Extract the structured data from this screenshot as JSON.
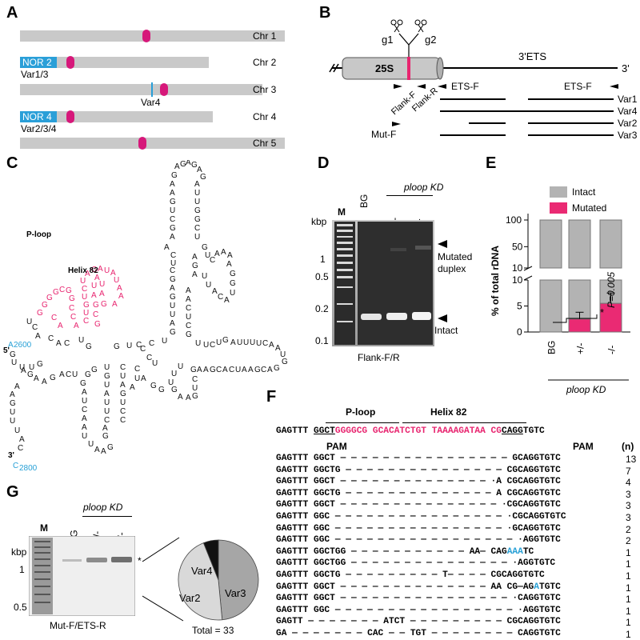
{
  "panels": {
    "a": "A",
    "b": "B",
    "c": "C",
    "d": "D",
    "e": "E",
    "f": "F",
    "g": "G"
  },
  "panelA": {
    "chromosomes": [
      {
        "label": "Chr 1",
        "nor": "",
        "note": ""
      },
      {
        "label": "Chr 2",
        "nor": "NOR 2",
        "note": "Var1/3"
      },
      {
        "label": "Chr 3",
        "nor": "",
        "note": "Var4"
      },
      {
        "label": "Chr 4",
        "nor": "NOR 4",
        "note": "Var2/3/4"
      },
      {
        "label": "Chr 5",
        "nor": "",
        "note": ""
      }
    ],
    "colors": {
      "chromosome": "#c9c9c9",
      "centromere": "#d6187a",
      "nor": "#2a9fd8"
    }
  },
  "panelB": {
    "gene": "25S",
    "region": "3'ETS",
    "end": "3'",
    "g1": "g1",
    "g2": "g2",
    "primers": {
      "flank_f": "Flank-F",
      "flank_r": "Flank-R",
      "ets_f": "ETS-F",
      "ets_r": "ETS-R",
      "mut_f": "Mut-F"
    },
    "variants": [
      "Var1",
      "Var4",
      "Var2",
      "Var3"
    ]
  },
  "panelC": {
    "p_loop": "P-loop",
    "helix": "Helix 82",
    "five": "5'",
    "three": "3'",
    "pos_start": "2600",
    "pos_end": "2800",
    "nt_start": "A",
    "nt_end": "C"
  },
  "panelD": {
    "lanes": [
      "M",
      "BG",
      "+/-",
      "-/-"
    ],
    "group": "ploop KD",
    "unit": "kbp",
    "ladder": [
      "1",
      "0.5",
      "0.2",
      "0.1"
    ],
    "mutated": "Mutated",
    "duplex": "duplex",
    "intact": "Intact",
    "primers": "Flank-F/R"
  },
  "panelE": {
    "ylabel": "% of total rDNA",
    "legend": [
      "Intact",
      "Mutated"
    ],
    "categories": [
      "BG",
      "+/-",
      "-/-"
    ],
    "group": "ploop KD",
    "pvalue": "P=0.005",
    "star": "*",
    "upper_ticks": [
      "100",
      "50",
      "10"
    ],
    "lower_ticks": [
      "10",
      "5",
      "0"
    ],
    "colors": {
      "intact": "#b3b3b3",
      "mutated": "#ea2a73"
    }
  },
  "chart_data": {
    "type": "bar",
    "categories": [
      "BG",
      "+/-",
      "-/-"
    ],
    "series": [
      {
        "name": "Intact",
        "values": [
          100,
          97.5,
          94.5
        ]
      },
      {
        "name": "Mutated",
        "values": [
          0,
          2.5,
          5.5
        ]
      }
    ],
    "errors": {
      "Mutated": [
        0,
        1.3,
        2.0
      ]
    },
    "ylabel": "% of total rDNA",
    "ylim": [
      0,
      100
    ],
    "axis_break": [
      10,
      10
    ],
    "pvalue": "P=0.005"
  },
  "panelF": {
    "title_ploop": "P-loop",
    "title_helix": "Helix 82",
    "pam": "PAM",
    "n_label": "(n)",
    "ref": {
      "a": "GAGTTT ",
      "b": "GGCT",
      "c": "GGGGCG ",
      "d": "GCACATCTGT TAAAAGATAA CG",
      "e": "CAGG",
      "f": "TGTC"
    },
    "rows": [
      {
        "text": "GAGTTT GGCT — — — — — — — — — — — — — — — — GCAGGTGTC",
        "n": "13"
      },
      {
        "text": "GAGTTT GGCTG — — — — — — — — — — — — — — — CGCAGGTGTC",
        "n": "7"
      },
      {
        "text": "GAGTTT GGCT — — — — — — — — — — — — — — ·A CGCAGGTGTC",
        "n": "4"
      },
      {
        "text": "GAGTTT GGCTG — — — — — — — — — — — — — — A CGCAGGTGTC",
        "n": "3"
      },
      {
        "text": "GAGTTT GGCT — — — — — — — — — — — — — — — ·CGCAGGTGTC",
        "n": "3"
      },
      {
        "text": "GAGTTT GGC — — — — — — — — — — — — — — — — ·CGCAGGTGTC",
        "n": "3"
      },
      {
        "text": "GAGTTT GGC — — — — — — — — — — — — — — — — ·GCAGGTGTC",
        "n": "2"
      },
      {
        "text": "GAGTTT GGC — — — — — — — — — — — — — — — — — ·AGGTGTC",
        "n": "2"
      },
      {
        "text": "GAGTTT GGCTGG — — — — — — — — — — — AA— CAG",
        "blue": "AAA",
        "tail": "TC",
        "n": "1"
      },
      {
        "text": "GAGTTT GGCTGG — — — — — — — — — — — — — — — ·AGGTGTC",
        "n": "1"
      },
      {
        "text": "GAGTTT GGCTG — — — — — — — — — T— — — — CGCAGGTGTC",
        "n": "1"
      },
      {
        "text": "GAGTTT GGCT — — — — — — — — — — — — — — AA CG—AG",
        "blue": "A",
        "tail": "TGTC",
        "n": "1"
      },
      {
        "text": "GAGTTT GGCT — — — — — — — — — — — — — — — — ·CAGGTGTC",
        "n": "1"
      },
      {
        "text": "GAGTTT GGC — — — — — — — — — — — — — — — — — ·AGGTGTC",
        "n": "1"
      },
      {
        "text": "GAGTT — — — — — — — ATCT — — — — — — — — — CGCAGGTGTC",
        "n": "1"
      },
      {
        "text": "GA — — — — — — — CAC — — TGT — — — — — — — — CAGGTGTC",
        "n": "1"
      }
    ]
  },
  "panelG": {
    "lanes": [
      "M",
      "BG",
      "+/-",
      "-/-"
    ],
    "group": "ploop KD",
    "unit": "kbp",
    "ladder": [
      "1",
      "0.5"
    ],
    "star": "*",
    "primers": "Mut-F/ETS-R",
    "total": "Total = 33",
    "pie": {
      "type": "pie",
      "labels": [
        "Var3",
        "Var2",
        "Var4"
      ],
      "counts": [
        16,
        15,
        2
      ],
      "colors": [
        "#a6a6a6",
        "#d9d9d9",
        "#111111"
      ]
    }
  }
}
